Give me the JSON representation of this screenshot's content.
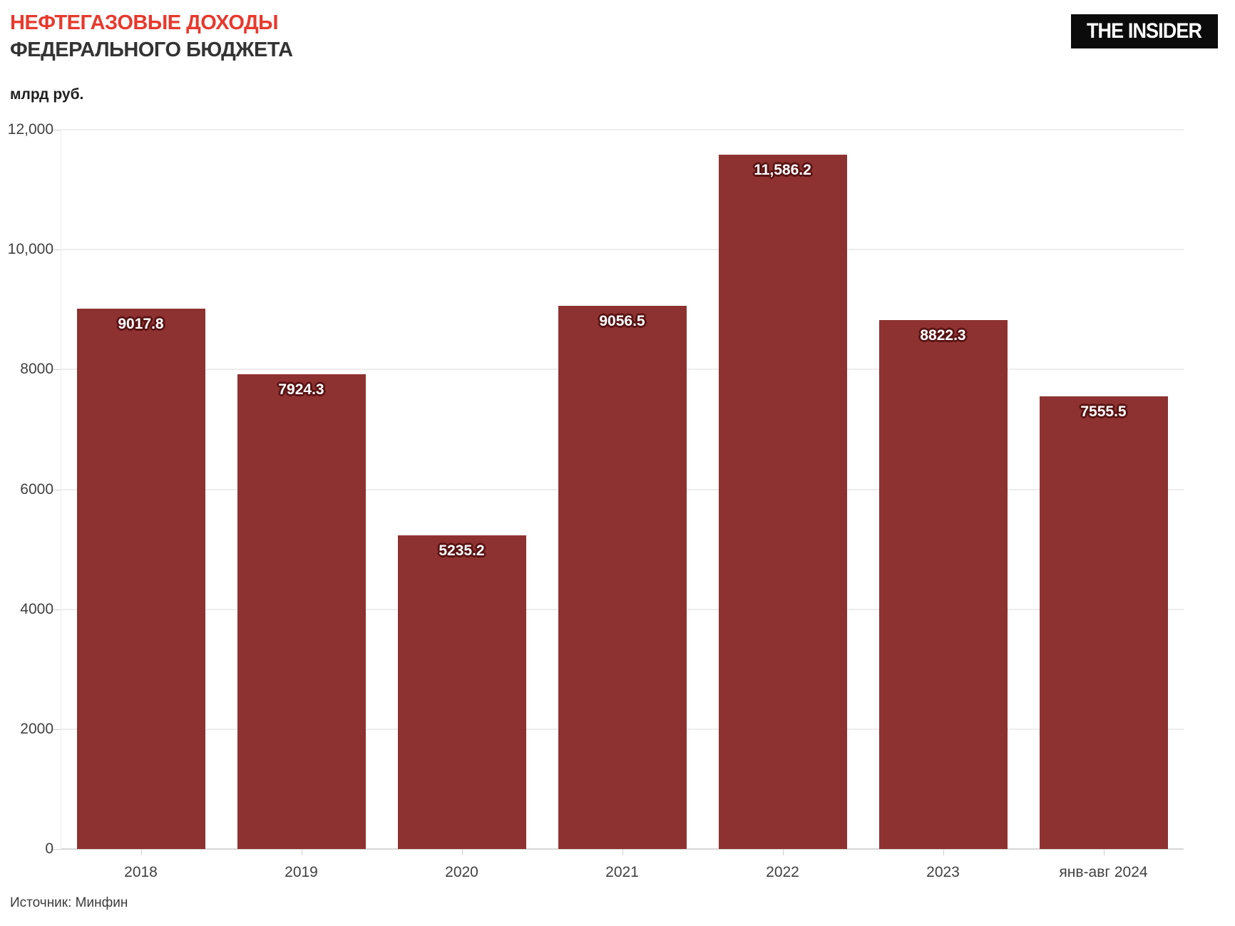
{
  "header": {
    "title_line1": "НЕФТЕГАЗОВЫЕ ДОХОДЫ",
    "title_line2": "ФЕДЕРАЛЬНОГО БЮДЖЕТА",
    "logo_text": "THE INSIDER"
  },
  "chart_data": {
    "type": "bar",
    "title": "НЕФТЕГАЗОВЫЕ ДОХОДЫ ФЕДЕРАЛЬНОГО БЮДЖЕТА",
    "unit_label": "млрд руб.",
    "categories": [
      "2018",
      "2019",
      "2020",
      "2021",
      "2022",
      "2023",
      "янв-авг 2024"
    ],
    "values": [
      9017.8,
      7924.3,
      5235.2,
      9056.5,
      11586.2,
      8822.3,
      7555.5
    ],
    "value_labels": [
      "9017.8",
      "7924.3",
      "5235.2",
      "9056.5",
      "11,586.2",
      "8822.3",
      "7555.5"
    ],
    "ylim": [
      0,
      12000
    ],
    "yticks": [
      {
        "value": 12000,
        "label": "12,000"
      },
      {
        "value": 10000,
        "label": "10,000"
      },
      {
        "value": 8000,
        "label": "8000"
      },
      {
        "value": 6000,
        "label": "6000"
      },
      {
        "value": 4000,
        "label": "4000"
      },
      {
        "value": 2000,
        "label": "2000"
      },
      {
        "value": 0,
        "label": "0"
      }
    ],
    "grid": true,
    "legend": "none",
    "bar_color": "#8e3231",
    "value_label_color": "#ffffff",
    "value_label_outline": "#591313"
  },
  "footer": {
    "source": "Источник: Минфин"
  },
  "colors": {
    "title_accent": "#e8392d",
    "title_dark": "#333333",
    "logo_bg": "#0b0b0b",
    "logo_text": "#ffffff",
    "axis_text": "#414141",
    "gridline": "#ededed",
    "baseline": "#d7d7d7",
    "tick": "#cfcfcf",
    "background": "#ffffff"
  }
}
